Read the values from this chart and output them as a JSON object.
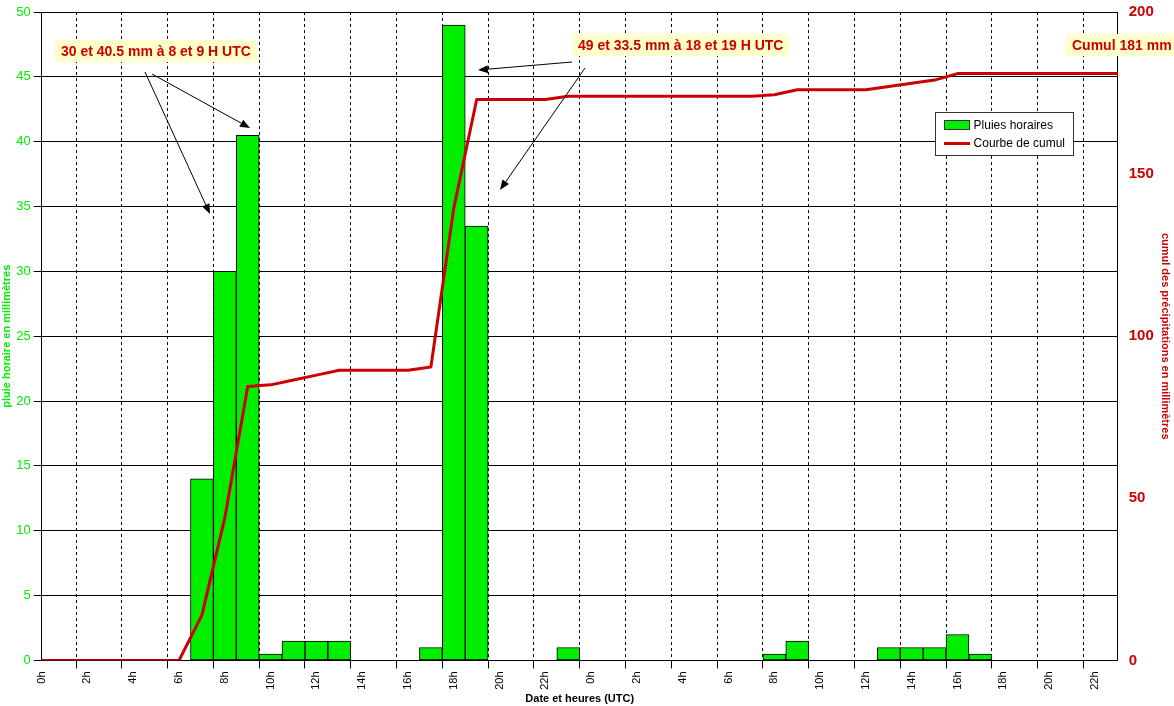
{
  "chart_data": {
    "type": "bar",
    "xlabel": "Date et heures (UTC)",
    "ylabel": "pluie horaire en millimètres",
    "y2label": "cumul des précipitations en millimètres",
    "annotations": [
      "30 et 40.5 mm à 8 et 9 H UTC",
      "49 et 33.5 mm à 18 et 19 H UTC",
      "Cumul 181 mm"
    ],
    "categories": [
      "0h",
      null,
      "2h",
      null,
      "4h",
      null,
      "6h",
      null,
      "8h",
      null,
      "10h",
      null,
      "12h",
      null,
      "14h",
      null,
      "16h",
      null,
      "18h",
      null,
      "20h",
      null,
      "22h",
      null,
      "0h",
      null,
      "2h",
      null,
      "4h",
      null,
      "6h",
      null,
      "8h",
      null,
      "10h",
      null,
      "12h",
      null,
      "14h",
      null,
      "16h",
      null,
      "18h",
      null,
      "20h",
      null,
      "22h",
      null
    ],
    "ylim": [
      0,
      50
    ],
    "yticks": [
      0,
      5,
      10,
      15,
      20,
      25,
      30,
      35,
      40,
      45,
      50
    ],
    "y2lim": [
      0,
      200
    ],
    "y2ticks": [
      0,
      50,
      100,
      150,
      200
    ],
    "series": [
      {
        "name": "Pluies horaires",
        "color": "#00ee00",
        "values": [
          0,
          0,
          0,
          0,
          0,
          0,
          0,
          14,
          30,
          40.5,
          0.5,
          1.5,
          1.5,
          1.5,
          0,
          0,
          0,
          1,
          49,
          33.5,
          0,
          0,
          0,
          1,
          0,
          0,
          0,
          0,
          0,
          0,
          0,
          0,
          0.5,
          1.5,
          0,
          0,
          0,
          1,
          1,
          1,
          2,
          0.5,
          0,
          0,
          0,
          0,
          0,
          0
        ]
      },
      {
        "name": "Courbe de cumul",
        "type": "line",
        "axis": "y2",
        "color": "#cc0000",
        "values": [
          0,
          0,
          0,
          0,
          0,
          0,
          0,
          14,
          44,
          84.5,
          85,
          86.5,
          88,
          89.5,
          89.5,
          89.5,
          89.5,
          90.5,
          139.5,
          173,
          173,
          173,
          173,
          174,
          174,
          174,
          174,
          174,
          174,
          174,
          174,
          174,
          174.5,
          176,
          176,
          176,
          176,
          177,
          178,
          179,
          181,
          181,
          181,
          181,
          181,
          181,
          181,
          181
        ]
      }
    ],
    "grid": true,
    "legend": "top right"
  }
}
